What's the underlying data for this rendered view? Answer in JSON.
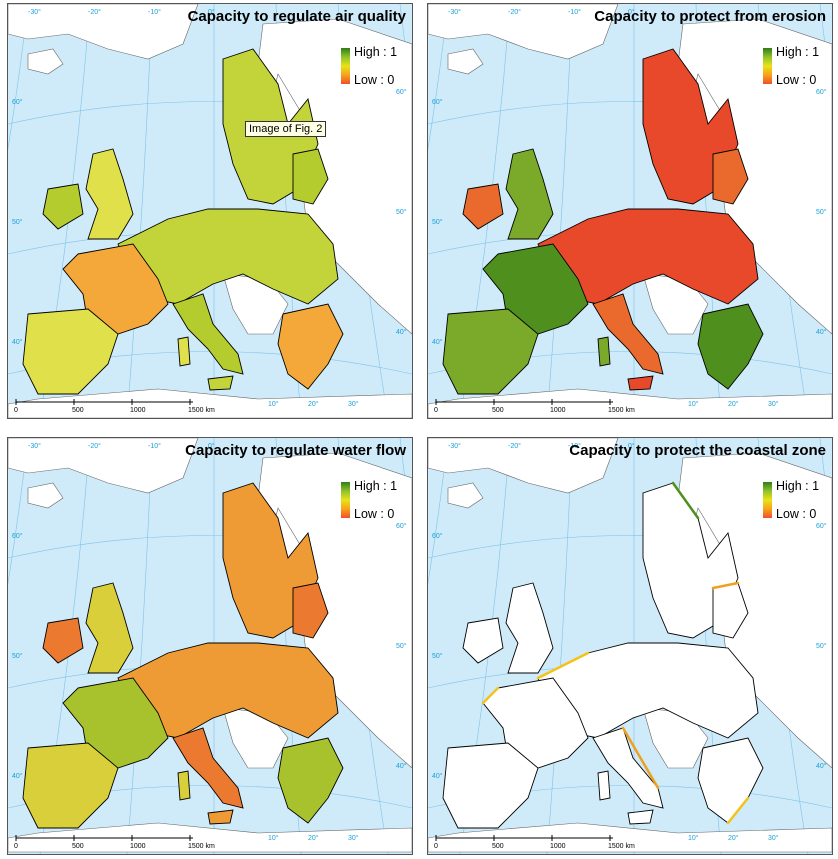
{
  "panels": [
    {
      "title": "Capacity to regulate air quality",
      "legend_high": "High : 1",
      "legend_low": "Low : 0",
      "fill_colors": [
        "#c3d43a",
        "#dfe04a",
        "#b5cc2f",
        "#f4a83a"
      ]
    },
    {
      "title": "Capacity to protect from erosion",
      "legend_high": "High : 1",
      "legend_low": "Low : 0",
      "fill_colors": [
        "#e8492a",
        "#7ba929",
        "#e96a2c",
        "#4f8f1e"
      ]
    },
    {
      "title": "Capacity to regulate water flow",
      "legend_high": "High : 1",
      "legend_low": "Low : 0",
      "fill_colors": [
        "#ee9a35",
        "#d9cf3a",
        "#eb7a30",
        "#a8c22e"
      ]
    },
    {
      "title": "Capacity to protect the coastal zone",
      "legend_high": "High : 1",
      "legend_low": "Low : 0",
      "fill_colors": [
        "#ffffff",
        "#ffffff",
        "#ffffff",
        "#ffffff"
      ]
    }
  ],
  "tooltip": "Image of Fig. 2",
  "graticule": {
    "lon_labels": [
      "-30°",
      "-20°",
      "-10°",
      "0°",
      "10°",
      "20°",
      "30°"
    ],
    "lat_labels": [
      "60°",
      "50°",
      "40°"
    ]
  },
  "scale_bar": {
    "labels": [
      "0",
      "500",
      "1000",
      "1500 km"
    ]
  },
  "colors": {
    "sea": "#cfeaf8",
    "non_eu_land": "#ffffff",
    "border": "#000000",
    "graticule": "#7fc4ea"
  }
}
